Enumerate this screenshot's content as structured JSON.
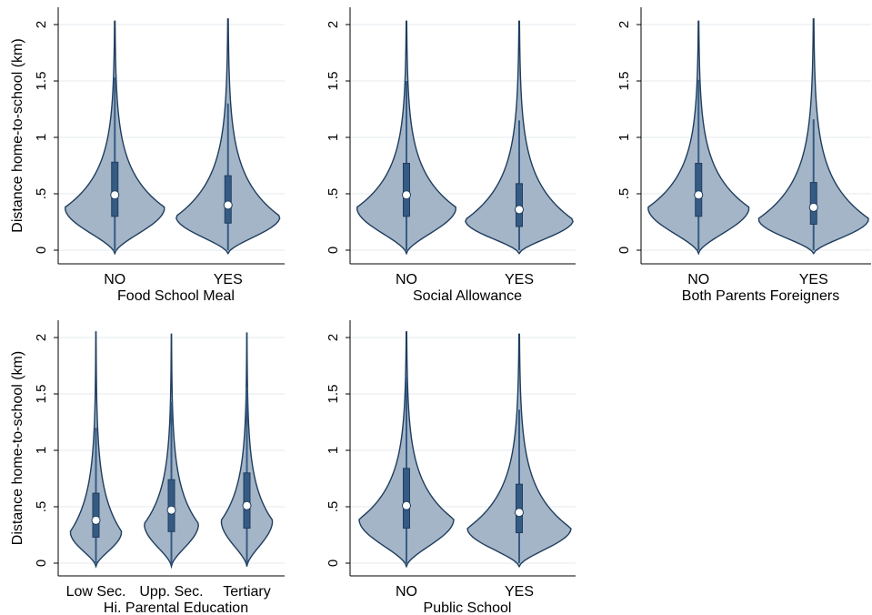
{
  "figure": {
    "shared_ylabel": "Distance home-to-school (km)"
  },
  "chart_data": [
    {
      "type": "violin",
      "xlabel": "Food School Meal",
      "ylabel": "Distance home-to-school (km)",
      "ylim": [
        0,
        2
      ],
      "yticks": [
        0,
        0.5,
        1,
        1.5,
        2
      ],
      "ytick_labels": [
        "0",
        ".5",
        "1",
        "1.5",
        "2"
      ],
      "grid": true,
      "categories": [
        "NO",
        "YES"
      ],
      "series": [
        {
          "category": "NO",
          "median": 0.49,
          "q1": 0.3,
          "q3": 0.78,
          "whisker_low": 0,
          "whisker_high": 1.53,
          "max": 2.03,
          "mode": 0.38,
          "max_half_width": 0.44
        },
        {
          "category": "YES",
          "median": 0.4,
          "q1": 0.24,
          "q3": 0.66,
          "whisker_low": 0,
          "whisker_high": 1.3,
          "max": 2.05,
          "mode": 0.3,
          "max_half_width": 0.46
        }
      ]
    },
    {
      "type": "violin",
      "xlabel": "Social Allowance",
      "ylabel": "",
      "ylim": [
        0,
        2
      ],
      "yticks": [
        0,
        0.5,
        1,
        1.5,
        2
      ],
      "ytick_labels": [
        "0",
        ".5",
        "1",
        "1.5",
        "2"
      ],
      "grid": true,
      "categories": [
        "NO",
        "YES"
      ],
      "series": [
        {
          "category": "NO",
          "median": 0.49,
          "q1": 0.3,
          "q3": 0.77,
          "whisker_low": 0,
          "whisker_high": 1.5,
          "max": 2.03,
          "mode": 0.38,
          "max_half_width": 0.44
        },
        {
          "category": "YES",
          "median": 0.36,
          "q1": 0.21,
          "q3": 0.59,
          "whisker_low": 0,
          "whisker_high": 1.15,
          "max": 2.03,
          "mode": 0.27,
          "max_half_width": 0.48
        }
      ]
    },
    {
      "type": "violin",
      "xlabel": "Both Parents Foreigners",
      "ylabel": "",
      "ylim": [
        0,
        2
      ],
      "yticks": [
        0,
        0.5,
        1,
        1.5,
        2
      ],
      "ytick_labels": [
        "0",
        ".5",
        "1",
        "1.5",
        "2"
      ],
      "grid": true,
      "categories": [
        "NO",
        "YES"
      ],
      "series": [
        {
          "category": "NO",
          "median": 0.49,
          "q1": 0.3,
          "q3": 0.77,
          "whisker_low": 0,
          "whisker_high": 1.51,
          "max": 2.03,
          "mode": 0.38,
          "max_half_width": 0.44
        },
        {
          "category": "YES",
          "median": 0.38,
          "q1": 0.23,
          "q3": 0.6,
          "whisker_low": 0,
          "whisker_high": 1.16,
          "max": 2.05,
          "mode": 0.28,
          "max_half_width": 0.48
        }
      ]
    },
    {
      "type": "violin",
      "xlabel": "Hi. Parental Education",
      "ylabel": "Distance home-to-school (km)",
      "ylim": [
        0,
        2
      ],
      "yticks": [
        0,
        0.5,
        1,
        1.5,
        2
      ],
      "ytick_labels": [
        "0",
        ".5",
        "1",
        "1.5",
        "2"
      ],
      "grid": true,
      "categories": [
        "Low Sec.",
        "Upp. Sec.",
        "Tertiary"
      ],
      "series": [
        {
          "category": "Low Sec.",
          "median": 0.38,
          "q1": 0.23,
          "q3": 0.62,
          "whisker_low": 0,
          "whisker_high": 1.2,
          "max": 2.05,
          "mode": 0.28,
          "max_half_width": 0.34
        },
        {
          "category": "Upp. Sec.",
          "median": 0.47,
          "q1": 0.28,
          "q3": 0.74,
          "whisker_low": 0,
          "whisker_high": 1.43,
          "max": 2.03,
          "mode": 0.35,
          "max_half_width": 0.36
        },
        {
          "category": "Tertiary",
          "median": 0.51,
          "q1": 0.31,
          "q3": 0.8,
          "whisker_low": 0,
          "whisker_high": 1.56,
          "max": 2.04,
          "mode": 0.38,
          "max_half_width": 0.34
        }
      ]
    },
    {
      "type": "violin",
      "xlabel": "Public School",
      "ylabel": "",
      "ylim": [
        0,
        2
      ],
      "yticks": [
        0,
        0.5,
        1,
        1.5,
        2
      ],
      "ytick_labels": [
        "0",
        ".5",
        "1",
        "1.5",
        "2"
      ],
      "grid": true,
      "categories": [
        "NO",
        "YES"
      ],
      "series": [
        {
          "category": "NO",
          "median": 0.51,
          "q1": 0.31,
          "q3": 0.84,
          "whisker_low": 0,
          "whisker_high": 1.65,
          "max": 2.05,
          "mode": 0.39,
          "max_half_width": 0.42
        },
        {
          "category": "YES",
          "median": 0.45,
          "q1": 0.27,
          "q3": 0.7,
          "whisker_low": 0,
          "whisker_high": 1.36,
          "max": 2.03,
          "mode": 0.31,
          "max_half_width": 0.46
        }
      ]
    }
  ]
}
